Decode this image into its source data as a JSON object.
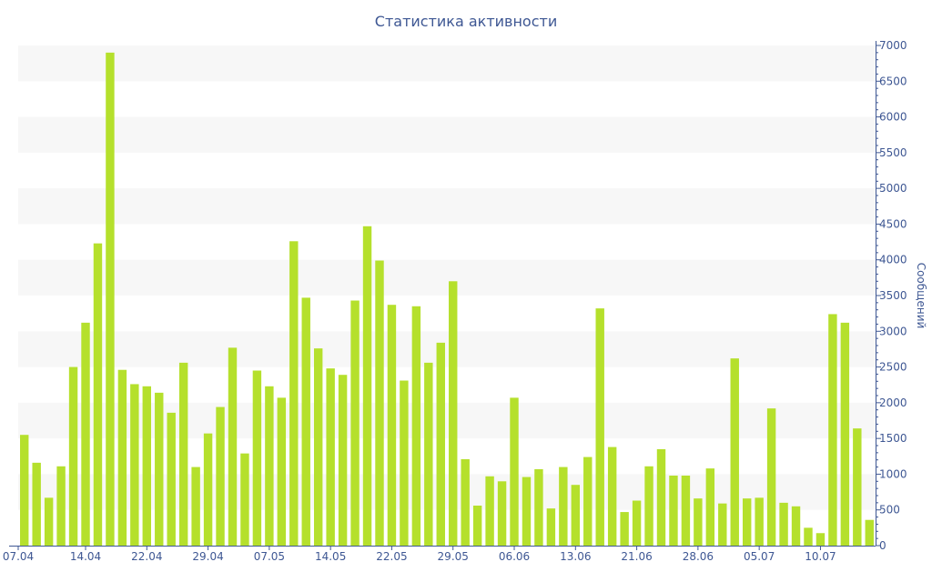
{
  "chart_data": {
    "type": "bar",
    "title": "Статистика активности",
    "ylabel": "Сообщений",
    "xlabel": "",
    "ylim": [
      0,
      7000
    ],
    "y_ticks": [
      0,
      500,
      1000,
      1500,
      2000,
      2500,
      3000,
      3500,
      4000,
      4500,
      5000,
      5500,
      6000,
      6500,
      7000
    ],
    "y_axis_position": "right",
    "grid": "alternating horizontal bands",
    "x_tick_labels": [
      "07.04",
      "14.04",
      "22.04",
      "29.04",
      "07.05",
      "14.05",
      "22.05",
      "29.05",
      "06.06",
      "13.06",
      "21.06",
      "28.06",
      "05.07",
      "10.07"
    ],
    "x_tick_positions": [
      0,
      5.5,
      10.5,
      15.5,
      20.5,
      25.5,
      30.5,
      35.5,
      40.5,
      45.5,
      50.5,
      55.5,
      60.5,
      65.5
    ],
    "values": [
      1550,
      1160,
      670,
      1110,
      2500,
      3120,
      4230,
      6900,
      2460,
      2260,
      2230,
      2140,
      1860,
      2560,
      1100,
      1570,
      1940,
      2770,
      1290,
      2450,
      2230,
      2070,
      4260,
      3470,
      2760,
      2480,
      2390,
      3430,
      4470,
      3990,
      3370,
      2310,
      3350,
      2560,
      2840,
      3700,
      1210,
      560,
      970,
      900,
      2070,
      960,
      1070,
      520,
      1100,
      850,
      1240,
      3320,
      1380,
      470,
      630,
      1110,
      1350,
      980,
      980,
      660,
      1080,
      590,
      2620,
      660,
      670,
      1920,
      600,
      550,
      250,
      175,
      3240,
      3120,
      1640,
      360
    ],
    "bar_color": "#b5e02c",
    "band_color": "#f7f7f7",
    "axis_color": "#3e5793"
  }
}
